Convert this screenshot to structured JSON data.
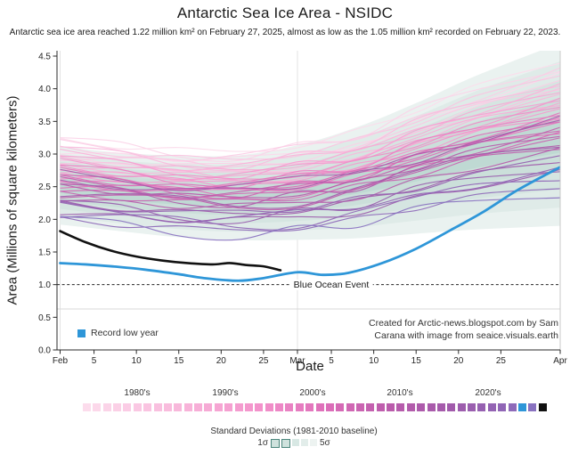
{
  "title": "Antarctic Sea Ice Area - NSIDC",
  "subtitle": "Antarctic sea ice area reached 1.22 million km² on February 27, 2025, almost as low as the 1.05 million km² recorded on February 22, 2023.",
  "axes": {
    "x_label": "Date",
    "y_label": "Area (Millions of square kilometers)",
    "y_ticks": [
      "0.0",
      "0.5",
      "1.0",
      "1.5",
      "2.0",
      "2.5",
      "3.0",
      "3.5",
      "4.0",
      "4.5"
    ],
    "x_ticks": [
      {
        "day": 0,
        "label": "Feb"
      },
      {
        "day": 4,
        "label": "5"
      },
      {
        "day": 9,
        "label": "10"
      },
      {
        "day": 14,
        "label": "15"
      },
      {
        "day": 19,
        "label": "20"
      },
      {
        "day": 24,
        "label": "25"
      },
      {
        "day": 28,
        "label": "Mar"
      },
      {
        "day": 32,
        "label": "5"
      },
      {
        "day": 37,
        "label": "10"
      },
      {
        "day": 42,
        "label": "15"
      },
      {
        "day": 47,
        "label": "20"
      },
      {
        "day": 52,
        "label": "25"
      },
      {
        "day": 59,
        "label": "Apr"
      }
    ]
  },
  "annotations": {
    "blue_ocean_event": "Blue Ocean Event",
    "credit_line1": "Created for Arctic-news.blogspot.com by Sam",
    "credit_line2": "Carana with image from seaice.visuals.earth"
  },
  "legends": {
    "record_low": "Record low year",
    "decades": [
      "1980's",
      "1990's",
      "2000's",
      "2010's",
      "2020's"
    ],
    "stddev_title": "Standard Deviations (1981-2010 baseline)",
    "sigma_min": "1σ",
    "sigma_max": "5σ",
    "stddev_squares": [
      {
        "fill": "#cfe2dd",
        "border": "#4a857b"
      },
      {
        "fill": "#cfe2dd",
        "border": "#4a857b"
      },
      {
        "fill": "#d8e8e4",
        "border": ""
      },
      {
        "fill": "#e2edea",
        "border": ""
      },
      {
        "fill": "#edf3f1",
        "border": ""
      }
    ]
  },
  "colors": {
    "record_low_blue": "#2e96d8",
    "current_year_black": "#111111",
    "grid": "#e2e2e2",
    "spine": "#2b2b2b",
    "right_spine": "#c9c9c9",
    "legend_strip_border": "#d8d8d8",
    "band_fills": [
      "#bfd9d3",
      "#cbdfda",
      "#d5e5e1",
      "#dfebe8",
      "#eaf2f0"
    ]
  },
  "chart_data": {
    "type": "line",
    "title": "Antarctic Sea Ice Area - NSIDC",
    "xlabel": "Date",
    "ylabel": "Area (Millions of square kilometers)",
    "x_range": [
      "Feb 1",
      "Apr 1"
    ],
    "ylim": [
      0.0,
      4.5
    ],
    "unit": "million km²",
    "highlights": {
      "min_2025": {
        "value": 1.22,
        "date": "February 27, 2025"
      },
      "record_low_2023": {
        "value": 1.05,
        "date": "February 22, 2023"
      }
    },
    "blue_ocean_event_level": 1.0,
    "baseline_band": {
      "label": "Standard Deviations (1981-2010 baseline)",
      "sigmas_shown": [
        1,
        2,
        3,
        4,
        5
      ],
      "days": [
        0,
        7,
        14,
        21,
        28,
        35,
        42,
        49,
        59
      ],
      "center": [
        2.52,
        2.42,
        2.35,
        2.33,
        2.41,
        2.56,
        2.78,
        3.02,
        3.3
      ],
      "sigma": [
        0.12,
        0.12,
        0.125,
        0.13,
        0.145,
        0.17,
        0.2,
        0.235,
        0.28
      ]
    },
    "ensemble": {
      "days": [
        0,
        7,
        14,
        21,
        28,
        35,
        42,
        49,
        59
      ],
      "spread_growth": [
        1.0,
        1.0,
        1.0,
        1.0,
        1.05,
        1.12,
        1.25,
        1.4,
        1.6
      ],
      "wiggle_scales": [
        1.0,
        1.4,
        1.8
      ],
      "wiggle_patterns": [
        [
          0.02,
          -0.04,
          0.05,
          0.01,
          -0.05,
          0.04,
          -0.02,
          0.06,
          -0.03
        ],
        [
          -0.05,
          0.03,
          -0.01,
          0.06,
          0.02,
          -0.05,
          0.04,
          -0.02,
          0.05
        ],
        [
          0.04,
          0.06,
          -0.03,
          -0.05,
          0.04,
          -0.04,
          0.06,
          0.02,
          -0.05
        ],
        [
          -0.02,
          -0.06,
          0.02,
          0.05,
          -0.04,
          0.06,
          -0.05,
          0.03,
          0.06
        ],
        [
          0.06,
          0.01,
          -0.05,
          0.03,
          0.06,
          -0.02,
          0.01,
          -0.06,
          0.02
        ],
        [
          -0.04,
          0.04,
          0.06,
          -0.02,
          -0.06,
          0.02,
          0.05,
          0.06,
          -0.02
        ]
      ],
      "years": [
        {
          "year": 1980,
          "offset": 0.7
        },
        {
          "year": 1981,
          "offset": 0.55
        },
        {
          "year": 1982,
          "offset": 0.66
        },
        {
          "year": 1983,
          "offset": 0.48
        },
        {
          "year": 1984,
          "offset": 0.62
        },
        {
          "year": 1985,
          "offset": 0.45
        },
        {
          "year": 1986,
          "offset": 0.58
        },
        {
          "year": 1987,
          "offset": 0.4
        },
        {
          "year": 1988,
          "offset": 0.52
        },
        {
          "year": 1989,
          "offset": 0.35
        },
        {
          "year": 1990,
          "offset": 0.47
        },
        {
          "year": 1991,
          "offset": 0.3
        },
        {
          "year": 1992,
          "offset": 0.42
        },
        {
          "year": 1993,
          "offset": 0.26
        },
        {
          "year": 1994,
          "offset": 0.38
        },
        {
          "year": 1995,
          "offset": 0.21
        },
        {
          "year": 1996,
          "offset": 0.33
        },
        {
          "year": 1997,
          "offset": 0.17
        },
        {
          "year": 1998,
          "offset": 0.28
        },
        {
          "year": 1999,
          "offset": 0.12
        },
        {
          "year": 2000,
          "offset": 0.24
        },
        {
          "year": 2001,
          "offset": 0.08
        },
        {
          "year": 2002,
          "offset": 0.19
        },
        {
          "year": 2003,
          "offset": 0.03
        },
        {
          "year": 2004,
          "offset": 0.14
        },
        {
          "year": 2005,
          "offset": -0.02
        },
        {
          "year": 2006,
          "offset": 0.09
        },
        {
          "year": 2007,
          "offset": -0.07
        },
        {
          "year": 2008,
          "offset": 0.05
        },
        {
          "year": 2009,
          "offset": -0.12
        },
        {
          "year": 2010,
          "offset": 0.0
        },
        {
          "year": 2011,
          "offset": -0.17
        },
        {
          "year": 2012,
          "offset": -0.05
        },
        {
          "year": 2013,
          "offset": 0.1
        },
        {
          "year": 2014,
          "offset": 0.16
        },
        {
          "year": 2015,
          "offset": -0.1
        },
        {
          "year": 2016,
          "offset": -0.25
        },
        {
          "year": 2017,
          "offset": -0.38
        },
        {
          "year": 2018,
          "offset": -0.3
        },
        {
          "year": 2019,
          "offset": -0.24
        },
        {
          "year": 2020,
          "offset": -0.33
        },
        {
          "year": 2021,
          "offset": -0.42
        },
        {
          "year": 2022,
          "offset": -0.5
        },
        {
          "year": 2023,
          "offset": -0.58
        },
        {
          "year": 2024,
          "offset": -0.55
        }
      ],
      "decade_gradient": [
        {
          "t": 0.0,
          "color": "#fcdcec"
        },
        {
          "t": 0.18,
          "color": "#f9bcdd"
        },
        {
          "t": 0.38,
          "color": "#f392cb"
        },
        {
          "t": 0.52,
          "color": "#de6fb9"
        },
        {
          "t": 0.66,
          "color": "#bb5cab"
        },
        {
          "t": 0.8,
          "color": "#a15bab"
        },
        {
          "t": 0.9,
          "color": "#9164b4"
        },
        {
          "t": 1.0,
          "color": "#8776c3"
        }
      ]
    },
    "series_2023_record_low": {
      "name": "2023 (record low year)",
      "color": "#2e96d8",
      "days": [
        0,
        3,
        7,
        10,
        14,
        17,
        21,
        24,
        28,
        31,
        34,
        38,
        42,
        46,
        50,
        54,
        59
      ],
      "values": [
        1.33,
        1.31,
        1.27,
        1.23,
        1.16,
        1.1,
        1.06,
        1.1,
        1.19,
        1.15,
        1.18,
        1.33,
        1.55,
        1.83,
        2.12,
        2.45,
        2.8
      ]
    },
    "series_2025": {
      "name": "2025",
      "color": "#111111",
      "days": [
        0,
        3,
        6,
        9,
        12,
        15,
        18,
        20,
        22,
        24,
        26
      ],
      "values": [
        1.82,
        1.65,
        1.52,
        1.43,
        1.37,
        1.33,
        1.31,
        1.33,
        1.3,
        1.28,
        1.22
      ]
    }
  }
}
